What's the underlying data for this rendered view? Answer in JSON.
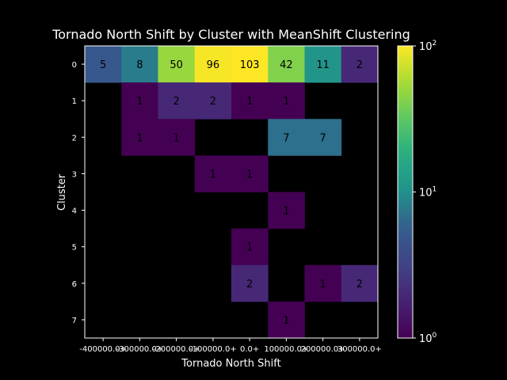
{
  "chart_data": {
    "type": "heatmap",
    "title": "Tornado North Shift by Cluster with MeanShift Clustering",
    "xlabel": "Tornado North Shift",
    "ylabel": "Cluster",
    "x_categories": [
      "-400000.0+",
      "-300000.0+",
      "-200000.0+",
      "-100000.0+",
      "0.0+",
      "100000.0+",
      "200000.0+",
      "300000.0+"
    ],
    "y_categories": [
      "0",
      "1",
      "2",
      "3",
      "4",
      "5",
      "6",
      "7"
    ],
    "values": [
      [
        5,
        8,
        50,
        96,
        103,
        42,
        11,
        2
      ],
      [
        null,
        1,
        2,
        2,
        1,
        1,
        null,
        null
      ],
      [
        null,
        1,
        1,
        null,
        null,
        7,
        7,
        null
      ],
      [
        null,
        null,
        null,
        1,
        1,
        null,
        null,
        null
      ],
      [
        null,
        null,
        null,
        null,
        null,
        1,
        null,
        null
      ],
      [
        null,
        null,
        null,
        null,
        1,
        null,
        null,
        null
      ],
      [
        null,
        null,
        null,
        null,
        2,
        null,
        1,
        2
      ],
      [
        null,
        null,
        null,
        null,
        null,
        1,
        null,
        null
      ]
    ],
    "colorbar": {
      "scale": "log",
      "colormap": "viridis",
      "range": [
        1,
        100
      ],
      "tick_labels": [
        "10^0",
        "10^1",
        "10^2"
      ]
    },
    "background_color": "#000000"
  }
}
